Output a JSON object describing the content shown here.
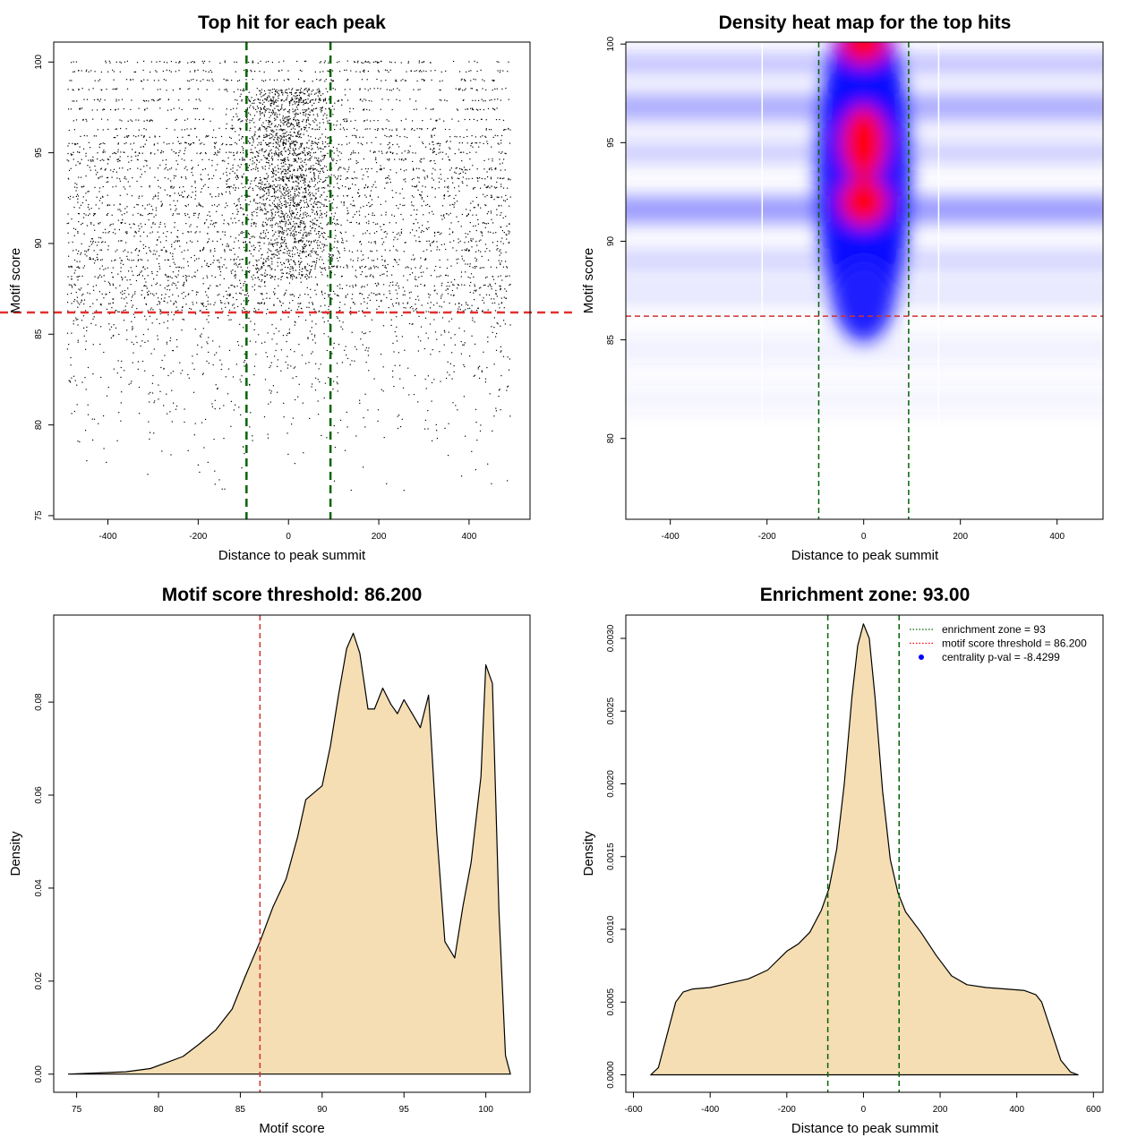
{
  "chart_data": [
    {
      "type": "scatter",
      "title": "Top hit for each peak",
      "xlabel": "Distance to peak summit",
      "ylabel": "Motif score",
      "xlim": [
        -520,
        535
      ],
      "ylim": [
        74.8,
        101.1
      ],
      "x_ticks": [
        -400,
        -200,
        0,
        200,
        400
      ],
      "y_ticks": [
        75,
        80,
        85,
        90,
        95,
        100
      ],
      "vlines": [
        -93,
        93
      ],
      "hline": 86.2,
      "x_range": [
        -490,
        492
      ],
      "score_levels": [
        100,
        99.5,
        99,
        98.5,
        97.9,
        97.4,
        96.8,
        96.3,
        95.9,
        95.5,
        95,
        94.6,
        94.1,
        93.6,
        93.1,
        92.6,
        92.1,
        91.6,
        91.1,
        90.6,
        90.1,
        89.6,
        89.1,
        88.7,
        88.2,
        87.7,
        87.2,
        86.7
      ],
      "point_count_estimate": 9000
    },
    {
      "type": "heatmap",
      "title": "Density heat map for the top hits",
      "xlabel": "Distance to peak summit",
      "ylabel": "Motif score",
      "xlim": [
        -492,
        495
      ],
      "ylim": [
        75.9,
        100.1
      ],
      "x_ticks": [
        -400,
        -200,
        0,
        200,
        400
      ],
      "y_ticks": [
        80,
        85,
        90,
        95,
        100
      ],
      "vlines": [
        -93,
        93
      ],
      "hline": 86.2,
      "white_lines": [
        -210,
        155
      ],
      "color_scale": [
        "#ffffff",
        "#0000ff",
        "#ff0000"
      ],
      "hotspots": [
        {
          "x": 0,
          "y": 100,
          "level": "red"
        },
        {
          "x": 0,
          "y": 95,
          "level": "red"
        },
        {
          "x": 0,
          "y": 92,
          "level": "red"
        },
        {
          "x": 0,
          "y": 89,
          "level": "blue"
        },
        {
          "x": -350,
          "y": 91.5,
          "level": "light-blue"
        },
        {
          "x": 350,
          "y": 91.5,
          "level": "light-blue"
        },
        {
          "x": -300,
          "y": 96.8,
          "level": "light-blue"
        },
        {
          "x": 300,
          "y": 96.8,
          "level": "light-blue"
        }
      ]
    },
    {
      "type": "area",
      "title": "Motif score threshold: 86.200",
      "xlabel": "Motif score",
      "ylabel": "Density",
      "xlim": [
        73.6,
        102.7
      ],
      "ylim": [
        -0.0039,
        0.0987
      ],
      "x_ticks": [
        75,
        80,
        85,
        90,
        95,
        100
      ],
      "y_ticks": [
        0.0,
        0.02,
        0.04,
        0.06,
        0.08
      ],
      "y_tick_labels": [
        "0.00",
        "0.02",
        "0.04",
        "0.06",
        "0.08"
      ],
      "vline": 86.2,
      "fill": "#f5deb3",
      "x": [
        74.5,
        78,
        79.5,
        80.5,
        81.5,
        82.5,
        83.5,
        84.5,
        85.3,
        86.2,
        87,
        87.8,
        88.5,
        89,
        89.5,
        90,
        90.5,
        91,
        91.5,
        91.9,
        92.3,
        92.8,
        93.2,
        93.7,
        94.2,
        94.6,
        95,
        95.5,
        96,
        96.5,
        97,
        97.5,
        98.1,
        98.6,
        99.1,
        99.7,
        100,
        100.4,
        100.8,
        101.2,
        101.5
      ],
      "y": [
        0.0,
        0.0005,
        0.0012,
        0.0025,
        0.0038,
        0.0065,
        0.0095,
        0.014,
        0.021,
        0.0285,
        0.036,
        0.042,
        0.051,
        0.059,
        0.0605,
        0.062,
        0.0705,
        0.0815,
        0.0915,
        0.0948,
        0.0905,
        0.0785,
        0.0785,
        0.083,
        0.0795,
        0.0775,
        0.0805,
        0.0775,
        0.0745,
        0.0815,
        0.052,
        0.0285,
        0.025,
        0.036,
        0.0455,
        0.064,
        0.088,
        0.084,
        0.035,
        0.004,
        0.0
      ]
    },
    {
      "type": "area",
      "title": "Enrichment zone: 93.00",
      "xlabel": "Distance to peak summit",
      "ylabel": "Density",
      "xlim": [
        -620,
        625
      ],
      "ylim": [
        -0.00012,
        0.00316
      ],
      "x_ticks": [
        -600,
        -400,
        -200,
        0,
        200,
        400,
        600
      ],
      "y_ticks": [
        0.0,
        0.0005,
        0.001,
        0.0015,
        0.002,
        0.0025,
        0.003
      ],
      "y_tick_labels": [
        "0.0000",
        "0.0005",
        "0.0010",
        "0.0015",
        "0.0020",
        "0.0025",
        "0.0030"
      ],
      "vlines": [
        -93,
        93
      ],
      "fill": "#f5deb3",
      "x": [
        -555,
        -535,
        -510,
        -490,
        -470,
        -445,
        -400,
        -350,
        -300,
        -250,
        -200,
        -170,
        -140,
        -110,
        -90,
        -70,
        -50,
        -30,
        -15,
        0,
        15,
        30,
        50,
        70,
        90,
        110,
        150,
        190,
        230,
        270,
        320,
        370,
        420,
        450,
        465,
        490,
        515,
        540,
        560
      ],
      "y": [
        0.0,
        5e-05,
        0.0003,
        0.0005,
        0.00057,
        0.00059,
        0.0006,
        0.00063,
        0.00066,
        0.00072,
        0.00085,
        0.0009,
        0.00098,
        0.00113,
        0.00128,
        0.00155,
        0.002,
        0.0026,
        0.00295,
        0.0031,
        0.003,
        0.0026,
        0.00195,
        0.00148,
        0.00125,
        0.00112,
        0.00098,
        0.00082,
        0.00068,
        0.00062,
        0.0006,
        0.00059,
        0.00058,
        0.00055,
        0.0005,
        0.0003,
        0.0001,
        2e-05,
        0.0
      ],
      "legend": {
        "placement": "top-right",
        "entries": [
          {
            "label": "enrichment zone = 93",
            "style": "dotted",
            "color": "#006400"
          },
          {
            "label": "motif score threshold = 86.200",
            "style": "dotted",
            "color": "#ff0000"
          },
          {
            "label": "centrality p-val = -8.4299",
            "style": "point",
            "color": "#0000ff"
          }
        ]
      }
    }
  ]
}
